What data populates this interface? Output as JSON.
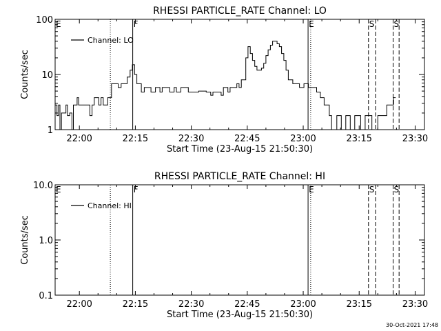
{
  "chart_data": [
    {
      "type": "line",
      "title": "RHESSI PARTICLE_RATE Channel: LO",
      "xlabel": "Start Time (23-Aug-15 21:50:30)",
      "ylabel": "Counts/sec",
      "yscale": "log",
      "ylim": [
        1,
        100
      ],
      "xlim_minutes": [
        -6.5,
        92.5
      ],
      "x_ticks": [
        "22:00",
        "22:15",
        "22:30",
        "22:45",
        "23:00",
        "23:15",
        "23:30"
      ],
      "x_tick_minutes": [
        0,
        15,
        30,
        45,
        60,
        75,
        90
      ],
      "y_ticks": [
        "1",
        "10",
        "100"
      ],
      "y_tick_values": [
        1,
        10,
        100
      ],
      "legend": "Channel: LO",
      "legend_position": "top-left",
      "markers": [
        {
          "label": "E",
          "minute": -6.5,
          "style": "none"
        },
        {
          "label": "",
          "minute": 8.3,
          "style": "dotted"
        },
        {
          "label": "F",
          "minute": 14.3,
          "style": "solid"
        },
        {
          "label": "E",
          "minute": 61.3,
          "style": "solid"
        },
        {
          "label": "",
          "minute": 62.0,
          "style": "dotted"
        },
        {
          "label": "S",
          "minute": 77.5,
          "style": "dashed"
        },
        {
          "label": "",
          "minute": 79.4,
          "style": "dashed"
        },
        {
          "label": "S",
          "minute": 84.1,
          "style": "dashed"
        },
        {
          "label": "",
          "minute": 85.7,
          "style": "dashed"
        }
      ],
      "series": [
        {
          "name": "Channel: LO",
          "points": [
            [
              -6.5,
              2.8
            ],
            [
              -6.0,
              1.8
            ],
            [
              -5.6,
              2.8
            ],
            [
              -5.2,
              1.0
            ],
            [
              -4.8,
              2.0
            ],
            [
              -4.0,
              2.0
            ],
            [
              -3.6,
              2.8
            ],
            [
              -3.2,
              1.8
            ],
            [
              -2.6,
              2.0
            ],
            [
              -2.0,
              1.0
            ],
            [
              -1.6,
              2.8
            ],
            [
              -1.0,
              2.8
            ],
            [
              -0.6,
              3.8
            ],
            [
              -0.2,
              2.8
            ],
            [
              0.4,
              2.8
            ],
            [
              1.0,
              2.8
            ],
            [
              1.6,
              2.8
            ],
            [
              2.2,
              2.8
            ],
            [
              2.8,
              1.8
            ],
            [
              3.4,
              2.8
            ],
            [
              4.0,
              3.8
            ],
            [
              4.6,
              3.8
            ],
            [
              5.2,
              2.8
            ],
            [
              5.8,
              3.8
            ],
            [
              6.4,
              2.8
            ],
            [
              7.0,
              2.8
            ],
            [
              7.6,
              3.8
            ],
            [
              8.2,
              3.8
            ],
            [
              8.6,
              6.8
            ],
            [
              9.6,
              6.8
            ],
            [
              10.4,
              5.8
            ],
            [
              11.2,
              6.8
            ],
            [
              12.0,
              6.8
            ],
            [
              12.8,
              9.0
            ],
            [
              13.6,
              12.0
            ],
            [
              14.2,
              15.0
            ],
            [
              14.8,
              10.0
            ],
            [
              15.4,
              6.8
            ],
            [
              16.0,
              6.8
            ],
            [
              16.6,
              4.8
            ],
            [
              17.4,
              5.8
            ],
            [
              18.6,
              5.8
            ],
            [
              19.2,
              4.8
            ],
            [
              20.4,
              5.8
            ],
            [
              21.6,
              4.8
            ],
            [
              22.2,
              5.8
            ],
            [
              23.6,
              5.8
            ],
            [
              24.2,
              4.8
            ],
            [
              25.4,
              5.8
            ],
            [
              26.0,
              4.8
            ],
            [
              27.2,
              5.8
            ],
            [
              28.6,
              5.8
            ],
            [
              29.2,
              4.8
            ],
            [
              31.0,
              4.8
            ],
            [
              32.0,
              5.0
            ],
            [
              34.0,
              4.8
            ],
            [
              35.2,
              4.2
            ],
            [
              35.8,
              4.8
            ],
            [
              37.4,
              4.8
            ],
            [
              38.0,
              4.2
            ],
            [
              38.6,
              5.8
            ],
            [
              39.8,
              4.8
            ],
            [
              40.4,
              5.8
            ],
            [
              41.6,
              5.8
            ],
            [
              42.2,
              6.8
            ],
            [
              42.8,
              5.8
            ],
            [
              43.4,
              8.0
            ],
            [
              44.6,
              20.0
            ],
            [
              45.2,
              32.0
            ],
            [
              45.8,
              24.0
            ],
            [
              46.4,
              18.0
            ],
            [
              47.0,
              14.0
            ],
            [
              47.6,
              12.0
            ],
            [
              48.8,
              13.0
            ],
            [
              49.4,
              16.0
            ],
            [
              50.0,
              22.0
            ],
            [
              50.6,
              28.0
            ],
            [
              51.2,
              34.0
            ],
            [
              51.8,
              40.0
            ],
            [
              52.4,
              40.0
            ],
            [
              53.0,
              36.0
            ],
            [
              53.6,
              32.0
            ],
            [
              54.2,
              24.0
            ],
            [
              54.8,
              18.0
            ],
            [
              55.4,
              12.0
            ],
            [
              56.0,
              8.0
            ],
            [
              57.2,
              6.8
            ],
            [
              58.4,
              6.8
            ],
            [
              59.0,
              5.8
            ],
            [
              60.2,
              6.8
            ],
            [
              61.3,
              6.8
            ],
            [
              61.4,
              5.8
            ],
            [
              62.4,
              5.8
            ],
            [
              63.6,
              4.8
            ],
            [
              64.6,
              3.8
            ],
            [
              65.6,
              2.8
            ],
            [
              66.4,
              2.8
            ],
            [
              67.0,
              1.8
            ],
            [
              67.6,
              1.0
            ],
            [
              68.4,
              1.0
            ],
            [
              69.0,
              1.8
            ],
            [
              69.6,
              1.8
            ],
            [
              70.2,
              1.0
            ],
            [
              70.8,
              1.0
            ],
            [
              71.4,
              1.8
            ],
            [
              72.0,
              1.8
            ],
            [
              72.6,
              1.0
            ],
            [
              73.2,
              1.0
            ],
            [
              73.8,
              1.8
            ],
            [
              74.8,
              1.8
            ],
            [
              75.4,
              1.0
            ],
            [
              76.0,
              1.0
            ],
            [
              76.6,
              1.8
            ],
            [
              77.8,
              1.8
            ],
            [
              78.4,
              1.0
            ],
            [
              79.4,
              1.0
            ],
            [
              80.0,
              1.8
            ],
            [
              80.6,
              1.8
            ],
            [
              81.2,
              1.8
            ],
            [
              81.8,
              1.8
            ],
            [
              82.4,
              2.8
            ],
            [
              83.6,
              2.8
            ],
            [
              84.2,
              3.8
            ],
            [
              84.8,
              3.8
            ]
          ]
        }
      ]
    },
    {
      "type": "line",
      "title": "RHESSI PARTICLE_RATE Channel: HI",
      "xlabel": "Start Time (23-Aug-15 21:50:30)",
      "ylabel": "Counts/sec",
      "yscale": "log",
      "ylim": [
        0.1,
        10
      ],
      "xlim_minutes": [
        -6.5,
        92.5
      ],
      "x_ticks": [
        "22:00",
        "22:15",
        "22:30",
        "22:45",
        "23:00",
        "23:15",
        "23:30"
      ],
      "x_tick_minutes": [
        0,
        15,
        30,
        45,
        60,
        75,
        90
      ],
      "y_ticks": [
        "0.1",
        "1.0",
        "10.0"
      ],
      "y_tick_values": [
        0.1,
        1,
        10
      ],
      "legend": "Channel: HI",
      "legend_position": "top-left",
      "markers": [
        {
          "label": "E",
          "minute": -6.5,
          "style": "none"
        },
        {
          "label": "",
          "minute": 8.3,
          "style": "dotted"
        },
        {
          "label": "F",
          "minute": 14.3,
          "style": "solid"
        },
        {
          "label": "E",
          "minute": 61.3,
          "style": "solid"
        },
        {
          "label": "",
          "minute": 62.0,
          "style": "dotted"
        },
        {
          "label": "S",
          "minute": 77.5,
          "style": "dashed"
        },
        {
          "label": "",
          "minute": 79.4,
          "style": "dashed"
        },
        {
          "label": "S",
          "minute": 84.1,
          "style": "dashed"
        },
        {
          "label": "",
          "minute": 85.7,
          "style": "dashed"
        }
      ],
      "series": [
        {
          "name": "Channel: HI",
          "points": []
        }
      ]
    }
  ],
  "footer": {
    "timestamp": "30-Oct-2021 17:48"
  }
}
